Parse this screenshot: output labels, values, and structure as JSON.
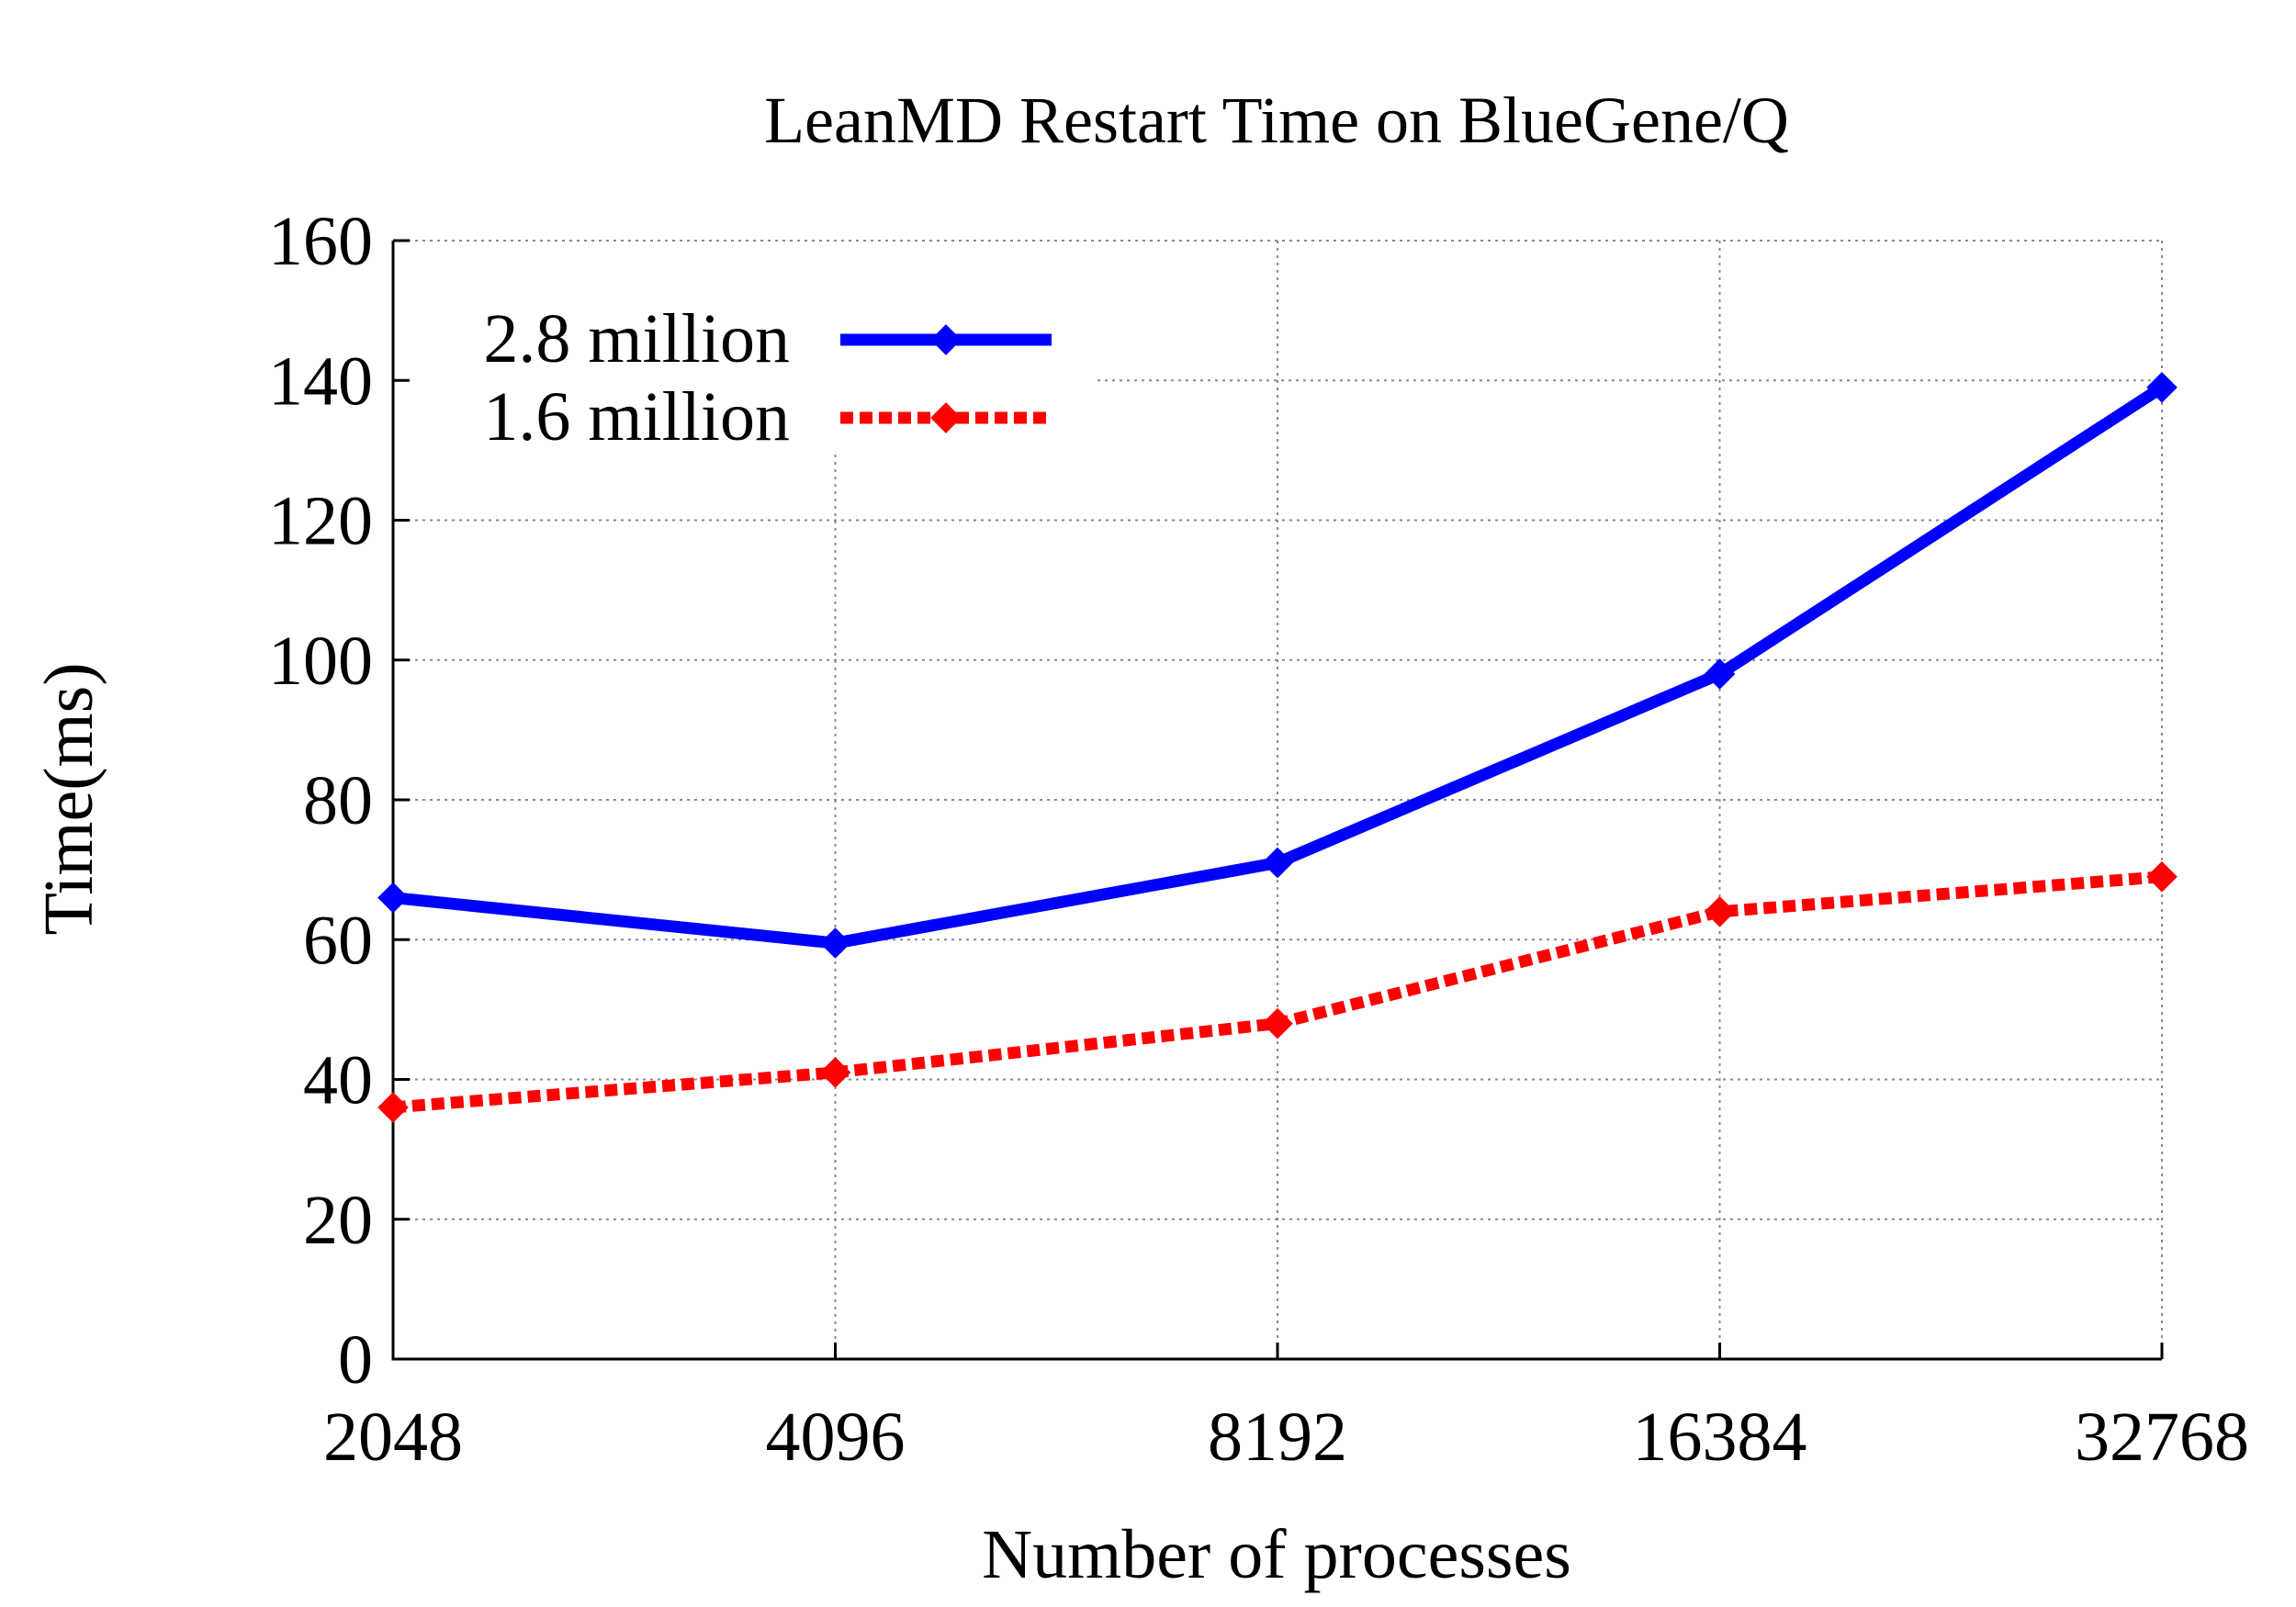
{
  "chart_data": {
    "type": "line",
    "title": "LeanMD Restart Time on BlueGene/Q",
    "xlabel": "Number of processes",
    "ylabel": "Time(ms)",
    "categories": [
      "2048",
      "4096",
      "8192",
      "16384",
      "32768"
    ],
    "y_ticks": [
      "0",
      "20",
      "40",
      "60",
      "80",
      "100",
      "120",
      "140",
      "160"
    ],
    "ylim": [
      0,
      160
    ],
    "grid": true,
    "legend_position": "top-left",
    "series": [
      {
        "name": "2.8 million",
        "color": "#0000ff",
        "line_style": "solid",
        "marker": "diamond",
        "values": [
          66,
          59.5,
          71,
          98,
          139
        ]
      },
      {
        "name": "1.6 million",
        "color": "#ff0000",
        "line_style": "dotted",
        "marker": "diamond",
        "values": [
          36,
          41,
          48,
          64,
          69
        ]
      }
    ]
  }
}
